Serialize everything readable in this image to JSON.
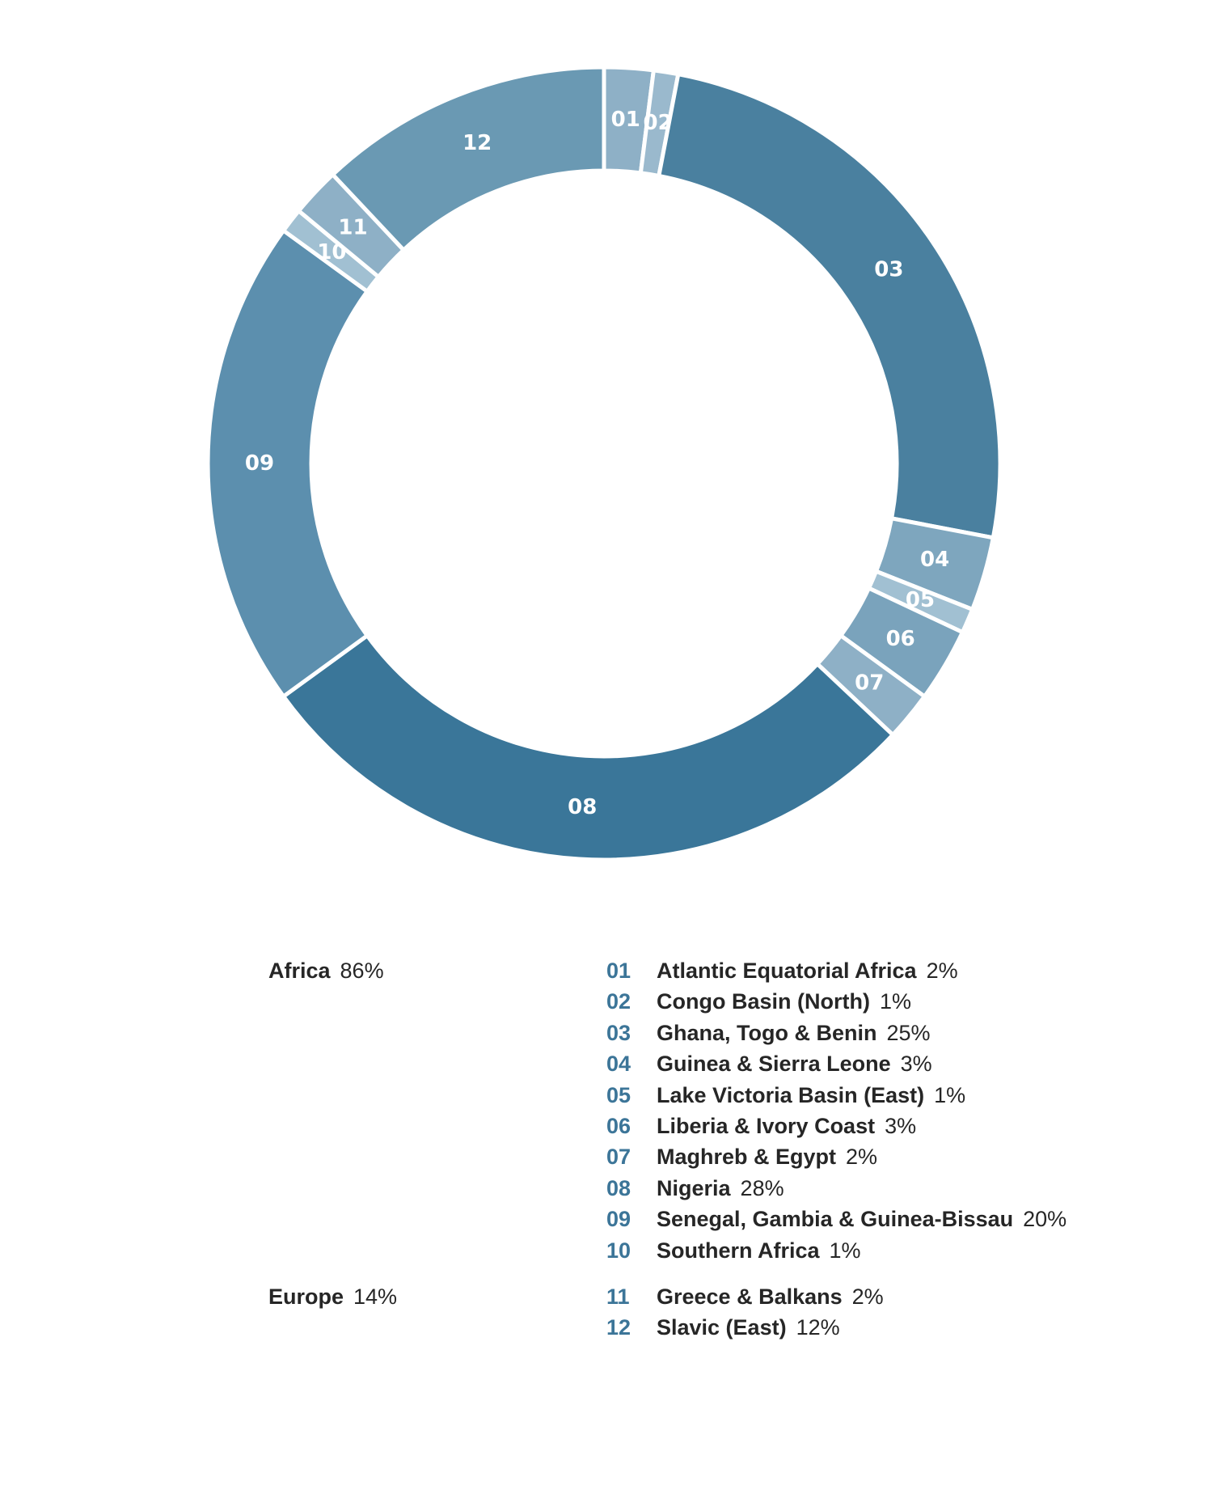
{
  "chart_data": {
    "type": "pie",
    "style": "donut",
    "segments": [
      {
        "id": "01",
        "name": "Atlantic Equatorial Africa",
        "value": 2,
        "label": "2%",
        "color": "#8eb0c6"
      },
      {
        "id": "02",
        "name": "Congo Basin (North)",
        "value": 1,
        "label": "1%",
        "color": "#9ab9cd"
      },
      {
        "id": "03",
        "name": "Ghana, Togo & Benin",
        "value": 25,
        "label": "25%",
        "color": "#4a809f"
      },
      {
        "id": "04",
        "name": "Guinea & Sierra Leone",
        "value": 3,
        "label": "3%",
        "color": "#7ea6be"
      },
      {
        "id": "05",
        "name": "Lake Victoria Basin (East)",
        "value": 1,
        "label": "1%",
        "color": "#a1c0d2"
      },
      {
        "id": "06",
        "name": "Liberia & Ivory Coast",
        "value": 3,
        "label": "3%",
        "color": "#7aa3bc"
      },
      {
        "id": "07",
        "name": "Maghreb & Egypt",
        "value": 2,
        "label": "2%",
        "color": "#8eb0c6"
      },
      {
        "id": "08",
        "name": "Nigeria",
        "value": 28,
        "label": "28%",
        "color": "#3a7699"
      },
      {
        "id": "09",
        "name": "Senegal, Gambia & Guinea-Bissau",
        "value": 20,
        "label": "20%",
        "color": "#5c8fae"
      },
      {
        "id": "10",
        "name": "Southern Africa",
        "value": 1,
        "label": "1%",
        "color": "#a1c0d2"
      },
      {
        "id": "11",
        "name": "Greece & Balkans",
        "value": 2,
        "label": "2%",
        "color": "#8eb0c6"
      },
      {
        "id": "12",
        "name": "Slavic (East)",
        "value": 12,
        "label": "12%",
        "color": "#6a99b3"
      }
    ],
    "groups": [
      {
        "name": "Africa",
        "label": "86%",
        "members": [
          "01",
          "02",
          "03",
          "04",
          "05",
          "06",
          "07",
          "08",
          "09",
          "10"
        ]
      },
      {
        "name": "Europe",
        "label": "14%",
        "members": [
          "11",
          "12"
        ]
      }
    ]
  },
  "colors": {
    "legend_number": "#3c7598",
    "separator": "#ffffff"
  }
}
